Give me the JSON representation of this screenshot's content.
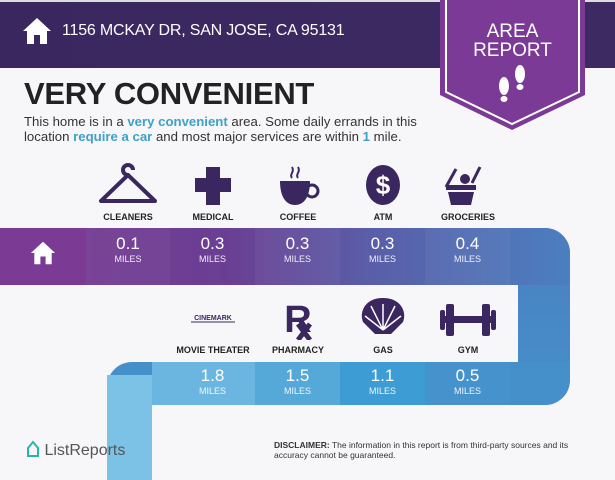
{
  "header": {
    "address": "1156 MCKAY DR, SAN JOSE, CA 95131",
    "home_icon": "house-icon"
  },
  "badge": {
    "line1": "AREA",
    "line2": "REPORT",
    "icon": "footprints-icon"
  },
  "title": "VERY CONVENIENT",
  "description": {
    "p1": "This home is in a ",
    "h1": "very convenient",
    "p2": " area. Some daily errands in this location ",
    "h2": "require a car",
    "p3": " and most major services are within ",
    "h3": "1",
    "p4": " mile."
  },
  "top_row": [
    {
      "label": "CLEANERS",
      "value": "0.1",
      "unit": "MILES",
      "icon": "hanger-icon"
    },
    {
      "label": "MEDICAL",
      "value": "0.3",
      "unit": "MILES",
      "icon": "medical-cross-icon"
    },
    {
      "label": "COFFEE",
      "value": "0.3",
      "unit": "MILES",
      "icon": "coffee-cup-icon"
    },
    {
      "label": "ATM",
      "value": "0.3",
      "unit": "MILES",
      "icon": "dollar-icon"
    },
    {
      "label": "GROCERIES",
      "value": "0.4",
      "unit": "MILES",
      "icon": "basket-icon"
    }
  ],
  "bottom_row": [
    {
      "label": "MOVIE THEATER",
      "value": "1.8",
      "unit": "MILES",
      "icon": "cinemark-logo-icon",
      "logo_text": "CINEMARK"
    },
    {
      "label": "PHARMACY",
      "value": "1.5",
      "unit": "MILES",
      "icon": "rx-icon"
    },
    {
      "label": "GAS",
      "value": "1.1",
      "unit": "MILES",
      "icon": "shell-icon"
    },
    {
      "label": "GYM",
      "value": "0.5",
      "unit": "MILES",
      "icon": "dumbbell-icon"
    }
  ],
  "footer": {
    "logo": "ListReports",
    "disclaimer_label": "DISCLAIMER:",
    "disclaimer": " The information in this report is from third-party sources and its accuracy cannot be guaranteed."
  },
  "colors": {
    "header": "#3b2760",
    "badge": "#7b3a96",
    "accent": "#3da2c7",
    "icon": "#3b2760"
  }
}
